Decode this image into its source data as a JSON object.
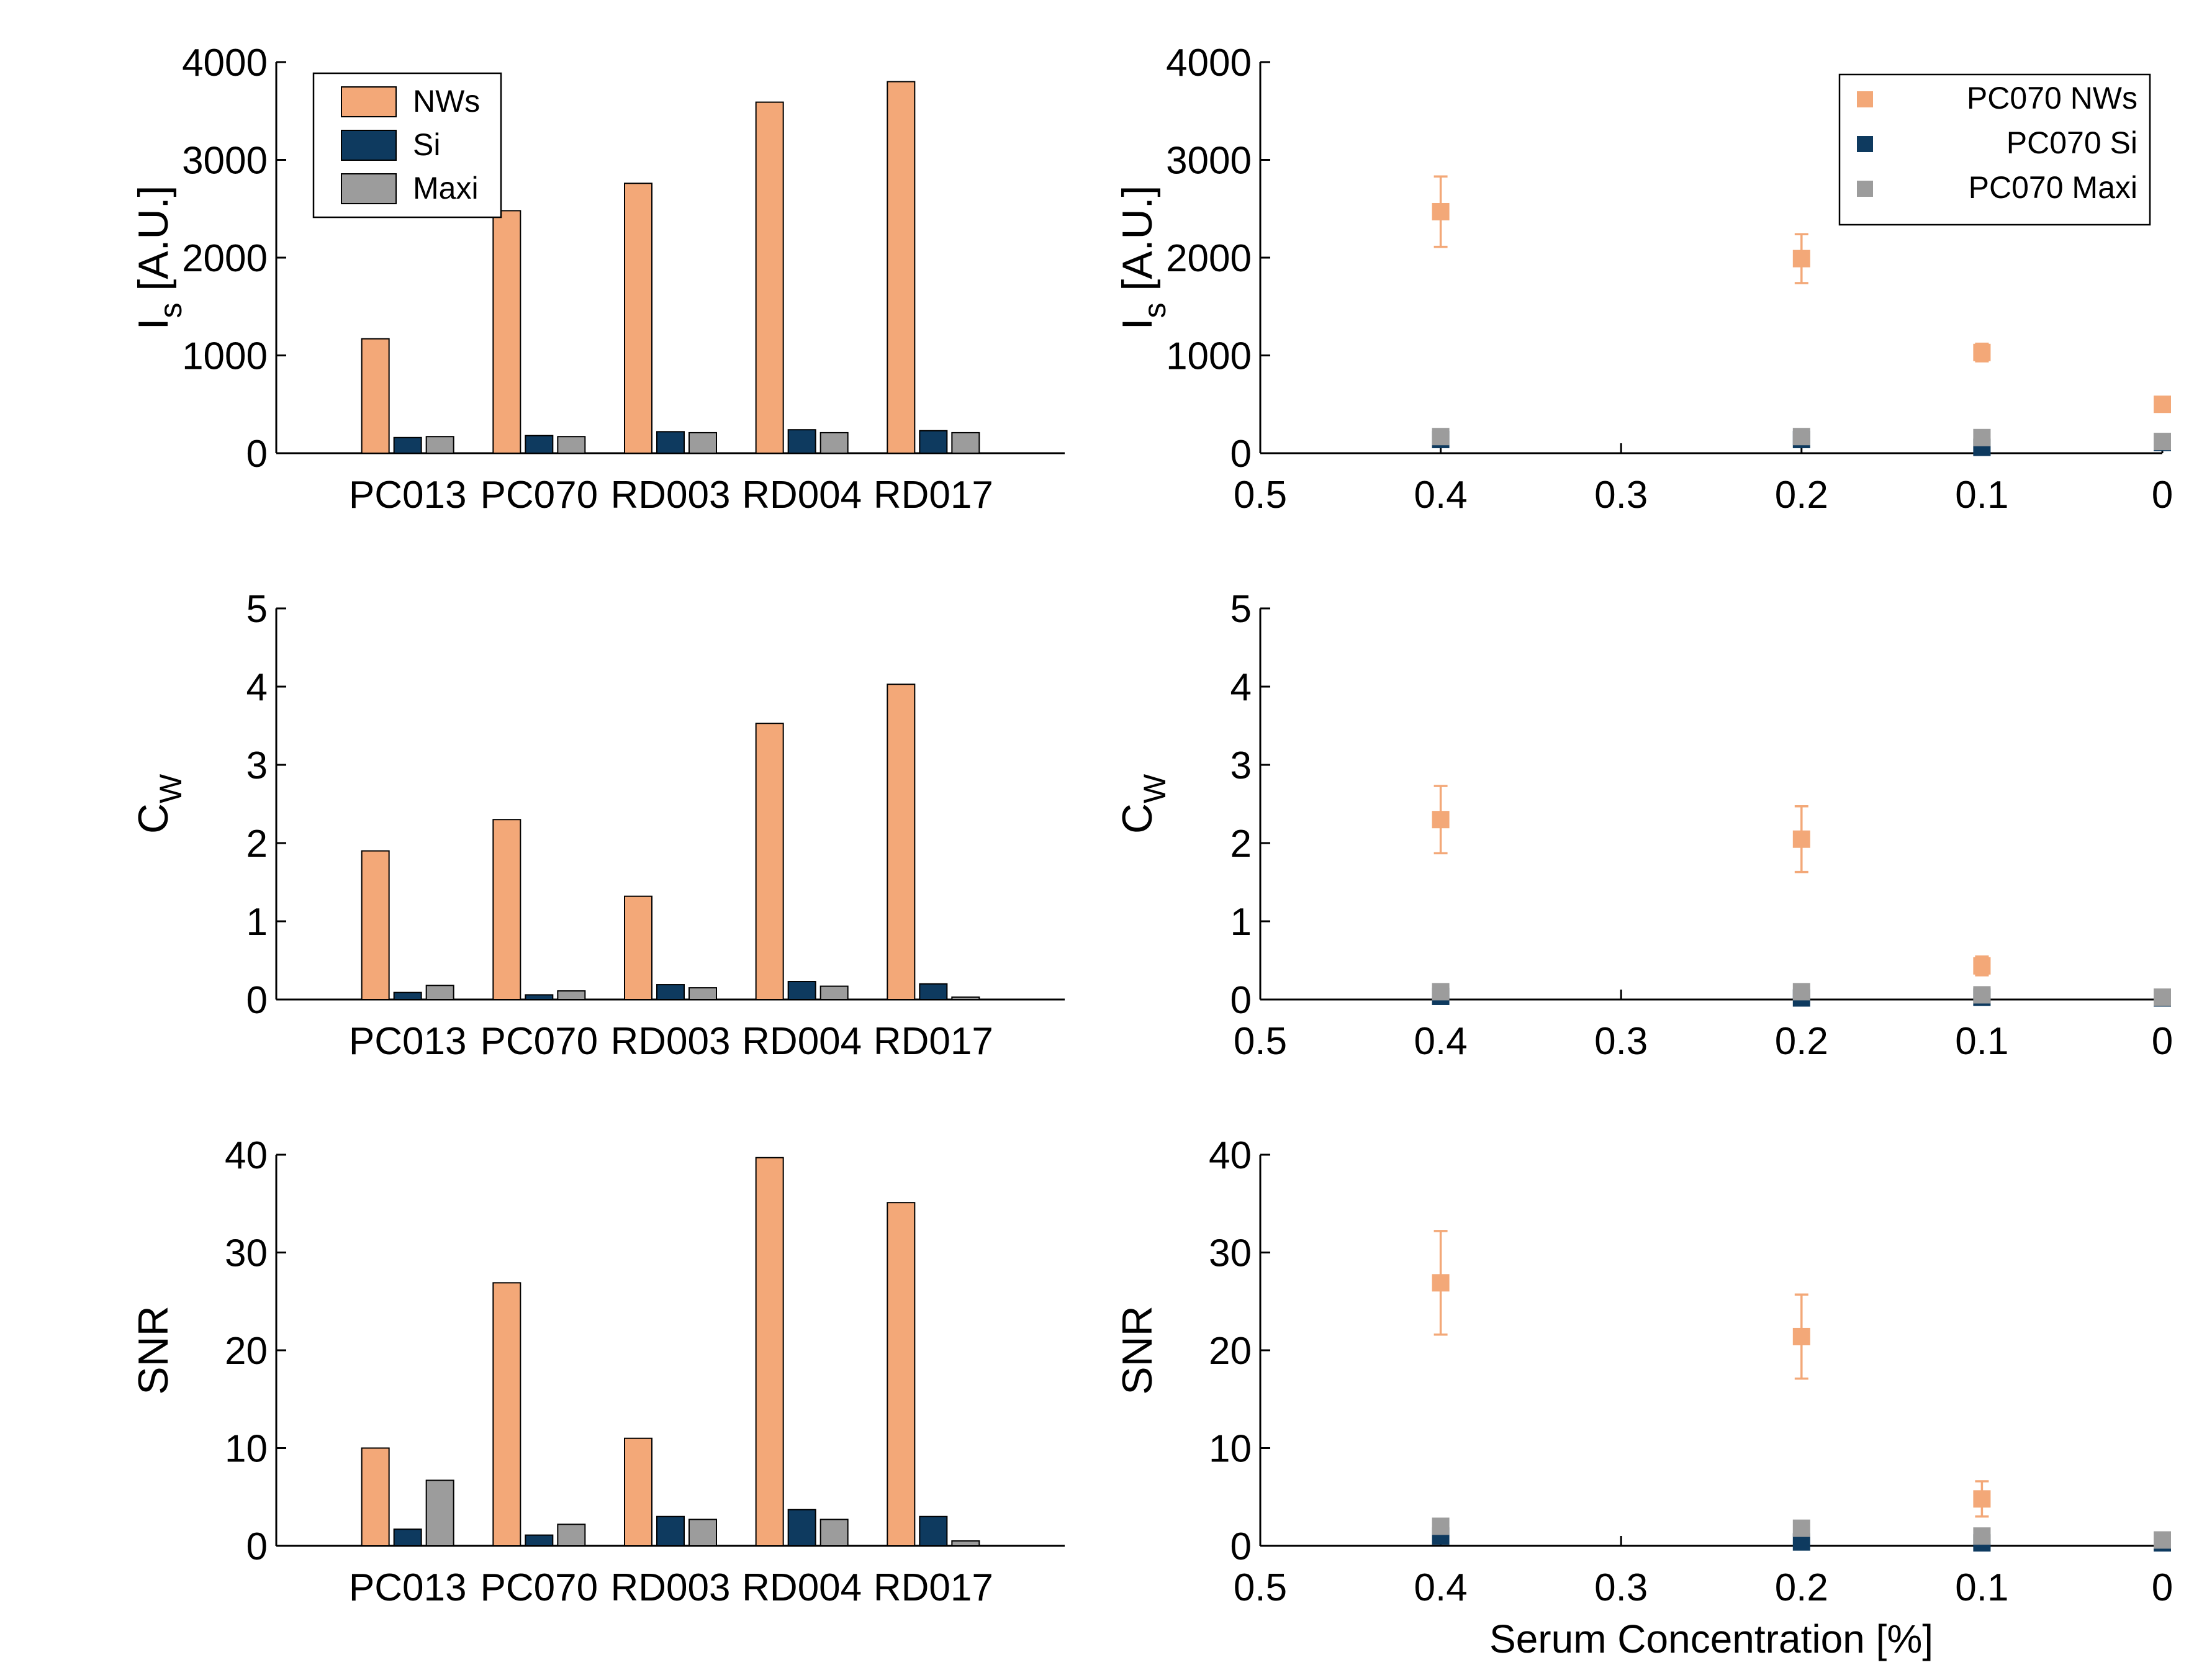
{
  "colors": {
    "nws": "#F3A878",
    "si": "#0E3A5F",
    "maxi": "#9C9C9C",
    "axis": "#000000"
  },
  "chart_data": [
    {
      "type": "bar",
      "ylabel": "I",
      "ylabel_sub": "s",
      "ylabel_unit": " [A.U.]",
      "ylim": [
        0,
        4000
      ],
      "yticks": [
        "0",
        "1000",
        "2000",
        "3000",
        "4000"
      ],
      "categories": [
        "PC013",
        "PC070",
        "RD003",
        "RD004",
        "RD017"
      ],
      "legend": [
        "NWs",
        "Si",
        "Maxi"
      ],
      "legend_position": "top-left",
      "series": [
        {
          "name": "NWs",
          "values": [
            1170,
            2480,
            2760,
            3590,
            3800
          ]
        },
        {
          "name": "Si",
          "values": [
            160,
            180,
            220,
            240,
            230
          ]
        },
        {
          "name": "Maxi",
          "values": [
            170,
            170,
            210,
            210,
            210
          ]
        }
      ]
    },
    {
      "type": "scatter",
      "ylabel": "I",
      "ylabel_sub": "s",
      "ylabel_unit": " [A.U.]",
      "xlim": [
        0.5,
        0
      ],
      "ylim": [
        0,
        4000
      ],
      "xticks": [
        "0.5",
        "0.4",
        "0.3",
        "0.2",
        "0.1",
        "0"
      ],
      "yticks": [
        "0",
        "1000",
        "2000",
        "3000",
        "4000"
      ],
      "legend": [
        "PC070 NWs",
        "PC070 Si",
        "PC070 Maxi"
      ],
      "legend_position": "top-right",
      "series": [
        {
          "name": "PC070 NWs",
          "x": [
            0.4,
            0.2,
            0.1,
            0
          ],
          "y": [
            2470,
            1990,
            1030,
            500
          ],
          "err": [
            360,
            250,
            90,
            40
          ]
        },
        {
          "name": "PC070 Si",
          "x": [
            0.4,
            0.2,
            0.1,
            0
          ],
          "y": [
            140,
            140,
            60,
            110
          ],
          "err": [
            0,
            0,
            0,
            0
          ]
        },
        {
          "name": "PC070 Maxi",
          "x": [
            0.4,
            0.2,
            0.1,
            0
          ],
          "y": [
            170,
            170,
            160,
            120
          ],
          "err": [
            0,
            0,
            0,
            0
          ]
        }
      ]
    },
    {
      "type": "bar",
      "ylabel": "C",
      "ylabel_sub": "W",
      "ylabel_unit": "",
      "ylim": [
        0,
        5
      ],
      "yticks": [
        "0",
        "1",
        "2",
        "3",
        "4",
        "5"
      ],
      "categories": [
        "PC013",
        "PC070",
        "RD003",
        "RD004",
        "RD017"
      ],
      "series": [
        {
          "name": "NWs",
          "values": [
            1.9,
            2.3,
            1.32,
            3.53,
            4.03
          ]
        },
        {
          "name": "Si",
          "values": [
            0.09,
            0.06,
            0.19,
            0.23,
            0.2
          ]
        },
        {
          "name": "Maxi",
          "values": [
            0.18,
            0.11,
            0.15,
            0.17,
            0.03
          ]
        }
      ]
    },
    {
      "type": "scatter",
      "ylabel": "C",
      "ylabel_sub": "W",
      "ylabel_unit": "",
      "xlim": [
        0.5,
        0
      ],
      "ylim": [
        0,
        5
      ],
      "xticks": [
        "0.5",
        "0.4",
        "0.3",
        "0.2",
        "0.1",
        "0"
      ],
      "yticks": [
        "0",
        "1",
        "2",
        "3",
        "4",
        "5"
      ],
      "series": [
        {
          "name": "PC070 NWs",
          "x": [
            0.4,
            0.2,
            0.1,
            0
          ],
          "y": [
            2.3,
            2.05,
            0.43,
            0.02
          ],
          "err": [
            0.43,
            0.42,
            0.12,
            0
          ]
        },
        {
          "name": "PC070 Si",
          "x": [
            0.4,
            0.2,
            0.1,
            0
          ],
          "y": [
            0.04,
            0.02,
            0.03,
            0.02
          ],
          "err": [
            0,
            0,
            0,
            0
          ]
        },
        {
          "name": "PC070 Maxi",
          "x": [
            0.4,
            0.2,
            0.1,
            0
          ],
          "y": [
            0.1,
            0.1,
            0.06,
            0.03
          ],
          "err": [
            0,
            0,
            0,
            0
          ]
        }
      ]
    },
    {
      "type": "bar",
      "ylabel": "SNR",
      "ylabel_sub": "",
      "ylabel_unit": "",
      "ylim": [
        0,
        40
      ],
      "yticks": [
        "0",
        "10",
        "20",
        "30",
        "40"
      ],
      "categories": [
        "PC013",
        "PC070",
        "RD003",
        "RD004",
        "RD017"
      ],
      "series": [
        {
          "name": "NWs",
          "values": [
            10,
            26.9,
            11,
            39.7,
            35.1
          ]
        },
        {
          "name": "Si",
          "values": [
            1.7,
            1.1,
            3,
            3.7,
            3
          ]
        },
        {
          "name": "Maxi",
          "values": [
            6.7,
            2.2,
            2.7,
            2.7,
            0.5
          ]
        }
      ]
    },
    {
      "type": "scatter",
      "ylabel": "SNR",
      "ylabel_sub": "",
      "ylabel_unit": "",
      "xlabel": "Serum Concentration [%]",
      "xlim": [
        0.5,
        0
      ],
      "ylim": [
        0,
        40
      ],
      "xticks": [
        "0.5",
        "0.4",
        "0.3",
        "0.2",
        "0.1",
        "0"
      ],
      "yticks": [
        "0",
        "10",
        "20",
        "30",
        "40"
      ],
      "series": [
        {
          "name": "PC070 NWs",
          "x": [
            0.4,
            0.2,
            0.1,
            0
          ],
          "y": [
            26.9,
            21.4,
            4.8,
            0.5
          ],
          "err": [
            5.3,
            4.3,
            1.8,
            0
          ]
        },
        {
          "name": "PC070 Si",
          "x": [
            0.4,
            0.2,
            0.1,
            0
          ],
          "y": [
            1,
            0.4,
            0.3,
            0.3
          ],
          "err": [
            0,
            0,
            0,
            0
          ]
        },
        {
          "name": "PC070 Maxi",
          "x": [
            0.4,
            0.2,
            0.1,
            0
          ],
          "y": [
            2,
            1.8,
            1,
            0.6
          ],
          "err": [
            0,
            0,
            0,
            0
          ]
        }
      ]
    }
  ]
}
